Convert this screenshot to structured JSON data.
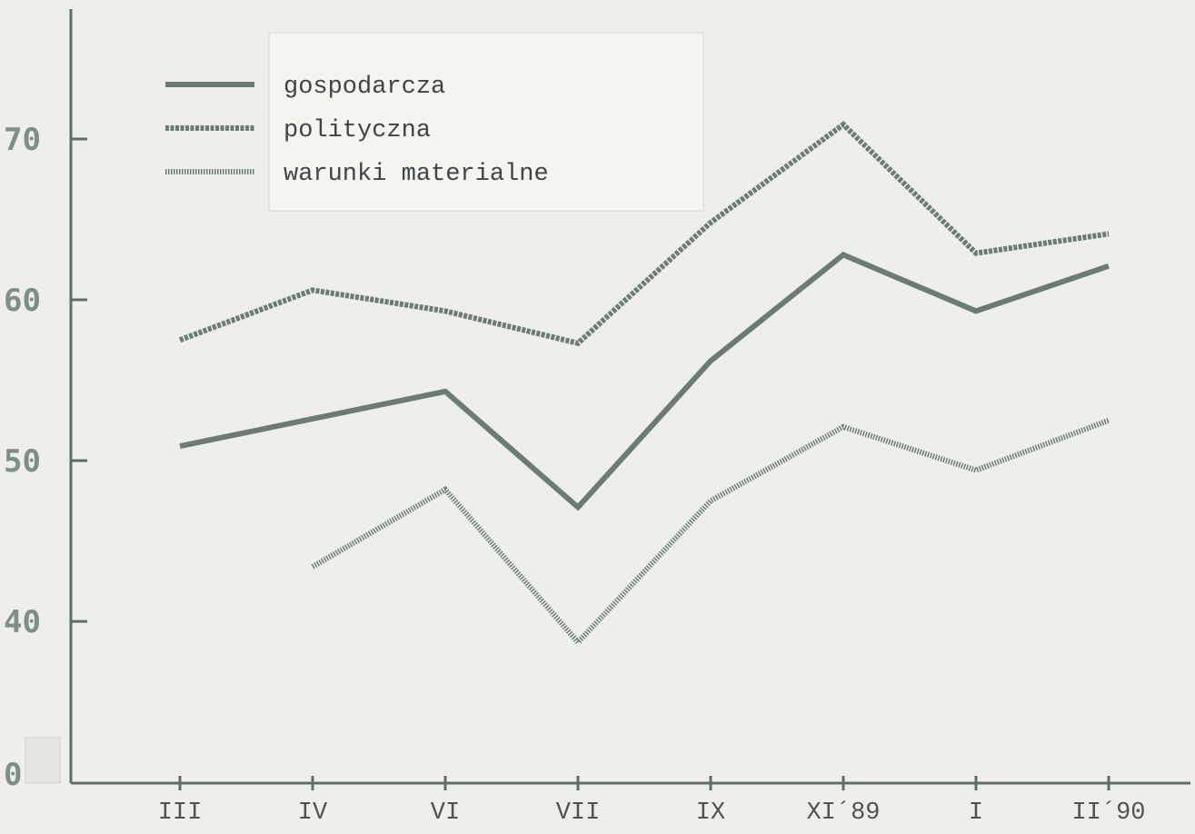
{
  "colors": {
    "background": "#efefea",
    "axis": "#5c6f66",
    "series": "#6b7c74",
    "legend_box": "#f4f4f1",
    "break_box": "#e6e6e0"
  },
  "chart_data": {
    "type": "line",
    "x": [
      "III",
      "IV",
      "VI",
      "VII",
      "IX",
      "XI´89",
      "I",
      "II´90"
    ],
    "y_ticks": [
      0,
      40,
      50,
      60,
      70
    ],
    "axis_break": {
      "from": 0,
      "to": 35
    },
    "ylim": [
      35,
      78
    ],
    "grid": false,
    "legend_position": "top-left",
    "series": [
      {
        "name": "gospodarcza",
        "style": "solid",
        "values": [
          50.9,
          52.6,
          54.3,
          47.1,
          56.2,
          62.8,
          59.3,
          62.1
        ]
      },
      {
        "name": "polityczna",
        "style": "dashed",
        "values": [
          57.5,
          60.6,
          59.3,
          57.3,
          64.8,
          70.9,
          62.9,
          64.1
        ]
      },
      {
        "name": "warunki materialne",
        "style": "dotted",
        "values": [
          null,
          43.4,
          48.2,
          38.7,
          47.5,
          52.1,
          49.4,
          52.5
        ]
      }
    ]
  }
}
